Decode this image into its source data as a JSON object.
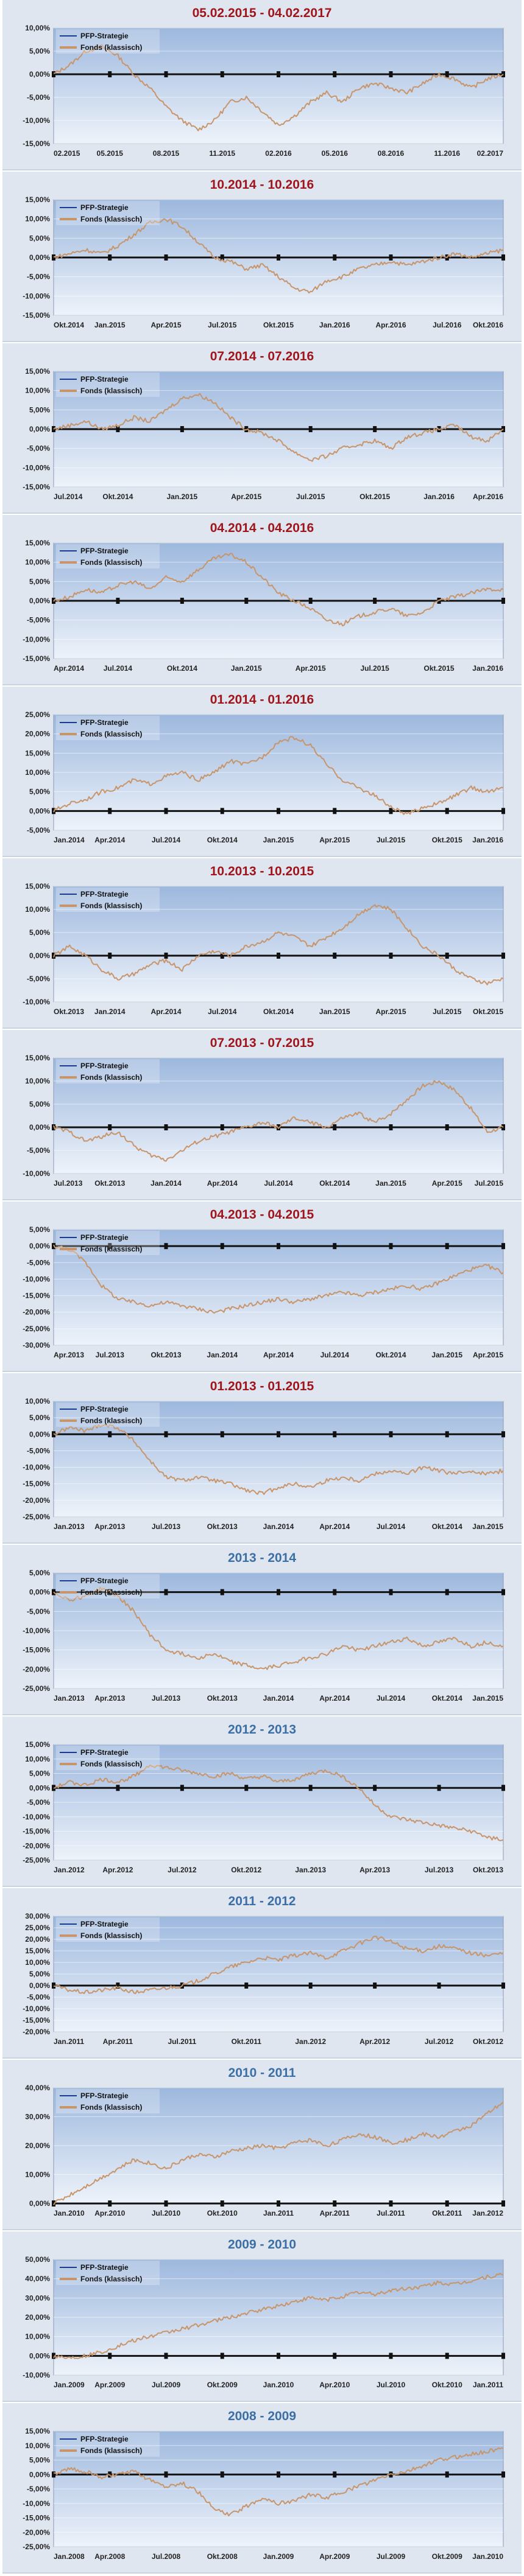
{
  "legend": {
    "strategy": "PFP-Strategie",
    "fund": "Fonds (klassisch)"
  },
  "colors": {
    "title_dark_red": "#a0141c",
    "title_blue": "#3b6fa6",
    "fund_line": "#c8956a",
    "strategy_line": "#111111",
    "plot_bg_top": "#9db8de",
    "plot_bg_bottom": "#eef3fa"
  },
  "chart_data": [
    {
      "type": "line",
      "title": "05.02.2015 - 04.02.2017",
      "title_color": "#a0141c",
      "ylim": [
        -15,
        10
      ],
      "yticks": [
        "-15,00%",
        "-10,00%",
        "-5,00%",
        "0,00%",
        "5,00%",
        "10,00%"
      ],
      "xticks": [
        "02.2015",
        "05.2015",
        "08.2015",
        "11.2015",
        "02.2016",
        "05.2016",
        "08.2016",
        "11.2016",
        "02.2017"
      ],
      "series": [
        {
          "name": "PFP-Strategie",
          "values": [
            0,
            0
          ]
        },
        {
          "name": "Fonds (klassisch)",
          "values": [
            0,
            2,
            5,
            6,
            4,
            0,
            -3,
            -7,
            -10,
            -12,
            -10,
            -6,
            -5,
            -8,
            -11,
            -9,
            -6,
            -4,
            -6,
            -3,
            -2,
            -3,
            -4,
            -2,
            0,
            -1,
            -3,
            -1,
            0
          ]
        }
      ]
    },
    {
      "type": "line",
      "title": "10.2014 - 10.2016",
      "title_color": "#a0141c",
      "ylim": [
        -15,
        15
      ],
      "yticks": [
        "-15,00%",
        "-10,00%",
        "-5,00%",
        "0,00%",
        "5,00%",
        "10,00%",
        "15,00%"
      ],
      "xticks": [
        "Okt.2014",
        "Jan.2015",
        "Apr.2015",
        "Jul.2015",
        "Okt.2015",
        "Jan.2016",
        "Apr.2016",
        "Jul.2016",
        "Okt.2016"
      ],
      "series": [
        {
          "name": "PFP-Strategie",
          "values": [
            0,
            0
          ]
        },
        {
          "name": "Fonds (klassisch)",
          "values": [
            0,
            1,
            2,
            1,
            3,
            6,
            9,
            10,
            8,
            4,
            0,
            -1,
            -3,
            -2,
            -5,
            -8,
            -9,
            -6,
            -5,
            -3,
            -2,
            -1,
            -2,
            -1,
            0,
            1,
            0,
            1,
            2
          ]
        }
      ]
    },
    {
      "type": "line",
      "title": "07.2014 - 07.2016",
      "title_color": "#a0141c",
      "ylim": [
        -15,
        15
      ],
      "yticks": [
        "-15,00%",
        "-10,00%",
        "-5,00%",
        "0,00%",
        "5,00%",
        "10,00%",
        "15,00%"
      ],
      "xticks": [
        "Jul.2014",
        "Okt.2014",
        "Jan.2015",
        "Apr.2015",
        "Jul.2015",
        "Okt.2015",
        "Jan.2016",
        "Apr.2016"
      ],
      "series": [
        {
          "name": "PFP-Strategie",
          "values": [
            0,
            0
          ]
        },
        {
          "name": "Fonds (klassisch)",
          "values": [
            0,
            1,
            2,
            0,
            1,
            3,
            2,
            5,
            8,
            9,
            7,
            3,
            0,
            -1,
            -3,
            -6,
            -8,
            -7,
            -5,
            -4,
            -3,
            -5,
            -2,
            -1,
            0,
            1,
            -2,
            -3,
            0
          ]
        }
      ]
    },
    {
      "type": "line",
      "title": "04.2014 - 04.2016",
      "title_color": "#a0141c",
      "ylim": [
        -15,
        15
      ],
      "yticks": [
        "-15,00%",
        "-10,00%",
        "-5,00%",
        "0,00%",
        "5,00%",
        "10,00%",
        "15,00%"
      ],
      "xticks": [
        "Apr.2014",
        "Jul.2014",
        "Okt.2014",
        "Jan.2015",
        "Apr.2015",
        "Jul.2015",
        "Okt.2015",
        "Jan.2016"
      ],
      "series": [
        {
          "name": "PFP-Strategie",
          "values": [
            0,
            0
          ]
        },
        {
          "name": "Fonds (klassisch)",
          "values": [
            0,
            1,
            3,
            2,
            4,
            5,
            3,
            6,
            5,
            8,
            11,
            12,
            10,
            6,
            2,
            0,
            -2,
            -5,
            -6,
            -4,
            -3,
            -2,
            -4,
            -3,
            0,
            1,
            2,
            3,
            3
          ]
        }
      ]
    },
    {
      "type": "line",
      "title": "01.2014 - 01.2016",
      "title_color": "#a0141c",
      "ylim": [
        -5,
        25
      ],
      "yticks": [
        "-5,00%",
        "0,00%",
        "5,00%",
        "10,00%",
        "15,00%",
        "20,00%",
        "25,00%"
      ],
      "xticks": [
        "Jan.2014",
        "Apr.2014",
        "Jul.2014",
        "Okt.2014",
        "Jan.2015",
        "Apr.2015",
        "Jul.2015",
        "Okt.2015",
        "Jan.2016"
      ],
      "series": [
        {
          "name": "PFP-Strategie",
          "values": [
            0,
            0
          ]
        },
        {
          "name": "Fonds (klassisch)",
          "values": [
            0,
            2,
            3,
            5,
            6,
            8,
            7,
            9,
            10,
            8,
            10,
            13,
            12,
            14,
            18,
            19,
            17,
            12,
            8,
            6,
            4,
            1,
            -1,
            1,
            2,
            4,
            6,
            5,
            6
          ]
        }
      ]
    },
    {
      "type": "line",
      "title": "10.2013 - 10.2015",
      "title_color": "#a0141c",
      "ylim": [
        -10,
        15
      ],
      "yticks": [
        "-10,00%",
        "-5,00%",
        "0,00%",
        "5,00%",
        "10,00%",
        "15,00%"
      ],
      "xticks": [
        "Okt.2013",
        "Jan.2014",
        "Apr.2014",
        "Jul.2014",
        "Okt.2014",
        "Jan.2015",
        "Apr.2015",
        "Jul.2015",
        "Okt.2015"
      ],
      "series": [
        {
          "name": "PFP-Strategie",
          "values": [
            0,
            0
          ]
        },
        {
          "name": "Fonds (klassisch)",
          "values": [
            0,
            2,
            0,
            -3,
            -5,
            -4,
            -2,
            -1,
            -3,
            0,
            1,
            0,
            2,
            3,
            5,
            4,
            2,
            4,
            6,
            9,
            11,
            10,
            6,
            2,
            0,
            -3,
            -5,
            -6,
            -5
          ]
        }
      ]
    },
    {
      "type": "line",
      "title": "07.2013 - 07.2015",
      "title_color": "#a0141c",
      "ylim": [
        -10,
        15
      ],
      "yticks": [
        "-10,00%",
        "-5,00%",
        "0,00%",
        "5,00%",
        "10,00%",
        "15,00%"
      ],
      "xticks": [
        "Jul.2013",
        "Okt.2013",
        "Jan.2014",
        "Apr.2014",
        "Jul.2014",
        "Okt.2014",
        "Jan.2015",
        "Apr.2015",
        "Jul.2015"
      ],
      "series": [
        {
          "name": "PFP-Strategie",
          "values": [
            0,
            0
          ]
        },
        {
          "name": "Fonds (klassisch)",
          "values": [
            0,
            -1,
            -3,
            -2,
            -1,
            -4,
            -6,
            -7,
            -5,
            -3,
            -2,
            -1,
            0,
            1,
            0,
            2,
            1,
            0,
            2,
            3,
            1,
            3,
            6,
            9,
            10,
            8,
            4,
            -1,
            0
          ]
        }
      ]
    },
    {
      "type": "line",
      "title": "04.2013 - 04.2015",
      "title_color": "#a0141c",
      "ylim": [
        -30,
        5
      ],
      "yticks": [
        "-30,00%",
        "-25,00%",
        "-20,00%",
        "-15,00%",
        "-10,00%",
        "-5,00%",
        "0,00%",
        "5,00%"
      ],
      "xticks": [
        "Apr.2013",
        "Jul.2013",
        "Okt.2013",
        "Jan.2014",
        "Apr.2014",
        "Jul.2014",
        "Okt.2014",
        "Jan.2015",
        "Apr.2015"
      ],
      "series": [
        {
          "name": "PFP-Strategie",
          "values": [
            0,
            0
          ]
        },
        {
          "name": "Fonds (klassisch)",
          "values": [
            0,
            -1,
            -5,
            -12,
            -16,
            -17,
            -18,
            -17,
            -18,
            -19,
            -20,
            -19,
            -18,
            -17,
            -16,
            -17,
            -16,
            -15,
            -14,
            -15,
            -14,
            -13,
            -12,
            -13,
            -11,
            -9,
            -7,
            -6,
            -8
          ]
        }
      ]
    },
    {
      "type": "line",
      "title": "01.2013 - 01.2015",
      "title_color": "#a0141c",
      "ylim": [
        -25,
        10
      ],
      "yticks": [
        "-25,00%",
        "-20,00%",
        "-15,00%",
        "-10,00%",
        "-5,00%",
        "0,00%",
        "5,00%",
        "10,00%"
      ],
      "xticks": [
        "Jan.2013",
        "Apr.2013",
        "Jul.2013",
        "Okt.2013",
        "Jan.2014",
        "Apr.2014",
        "Jul.2014",
        "Okt.2014",
        "Jan.2015"
      ],
      "series": [
        {
          "name": "PFP-Strategie",
          "values": [
            0,
            0
          ]
        },
        {
          "name": "Fonds (klassisch)",
          "values": [
            0,
            2,
            1,
            3,
            2,
            -2,
            -8,
            -13,
            -14,
            -13,
            -14,
            -15,
            -17,
            -18,
            -16,
            -15,
            -16,
            -14,
            -13,
            -14,
            -12,
            -11,
            -12,
            -10,
            -11,
            -12,
            -11,
            -12,
            -11
          ]
        }
      ]
    },
    {
      "type": "line",
      "title": "2013 - 2014",
      "title_color": "#3b6fa6",
      "ylim": [
        -25,
        5
      ],
      "yticks": [
        "-25,00%",
        "-20,00%",
        "-15,00%",
        "-10,00%",
        "-5,00%",
        "0,00%",
        "5,00%"
      ],
      "xticks": [
        "Jan.2013",
        "Apr.2013",
        "Jul.2013",
        "Okt.2013",
        "Jan.2014",
        "Apr.2014",
        "Jul.2014",
        "Okt.2014",
        "Jan.2015"
      ],
      "series": [
        {
          "name": "PFP-Strategie",
          "values": [
            0,
            0
          ]
        },
        {
          "name": "Fonds (klassisch)",
          "values": [
            0,
            -2,
            -1,
            1,
            -1,
            -5,
            -11,
            -15,
            -16,
            -17,
            -16,
            -18,
            -19,
            -20,
            -19,
            -18,
            -17,
            -16,
            -14,
            -15,
            -14,
            -13,
            -12,
            -14,
            -13,
            -12,
            -14,
            -13,
            -14
          ]
        }
      ]
    },
    {
      "type": "line",
      "title": "2012 - 2013",
      "title_color": "#3b6fa6",
      "ylim": [
        -25,
        15
      ],
      "yticks": [
        "-25,00%",
        "-20,00%",
        "-15,00%",
        "-10,00%",
        "-5,00%",
        "0,00%",
        "5,00%",
        "10,00%",
        "15,00%"
      ],
      "xticks": [
        "Jan.2012",
        "Apr.2012",
        "Jul.2012",
        "Okt.2012",
        "Jan.2013",
        "Apr.2013",
        "Jul.2013",
        "Okt.2013"
      ],
      "series": [
        {
          "name": "PFP-Strategie",
          "values": [
            0,
            0
          ]
        },
        {
          "name": "Fonds (klassisch)",
          "values": [
            0,
            2,
            1,
            3,
            2,
            4,
            8,
            7,
            6,
            5,
            4,
            5,
            3,
            4,
            2,
            3,
            5,
            6,
            4,
            0,
            -6,
            -10,
            -11,
            -12,
            -13,
            -14,
            -15,
            -17,
            -18
          ]
        }
      ]
    },
    {
      "type": "line",
      "title": "2011 - 2012",
      "title_color": "#3b6fa6",
      "ylim": [
        -20,
        30
      ],
      "yticks": [
        "-20,00%",
        "-15,00%",
        "-10,00%",
        "-5,00%",
        "0,00%",
        "5,00%",
        "10,00%",
        "15,00%",
        "20,00%",
        "25,00%",
        "30,00%"
      ],
      "xticks": [
        "Jan.2011",
        "Apr.2011",
        "Jul.2011",
        "Okt.2011",
        "Jan.2012",
        "Apr.2012",
        "Jul.2012",
        "Okt.2012"
      ],
      "series": [
        {
          "name": "PFP-Strategie",
          "values": [
            0,
            0
          ]
        },
        {
          "name": "Fonds (klassisch)",
          "values": [
            0,
            -2,
            -3,
            -2,
            -1,
            -3,
            -2,
            -1,
            0,
            2,
            5,
            8,
            10,
            12,
            11,
            13,
            14,
            12,
            15,
            18,
            21,
            19,
            16,
            15,
            17,
            16,
            14,
            13,
            14
          ]
        }
      ]
    },
    {
      "type": "line",
      "title": "2010 - 2011",
      "title_color": "#3b6fa6",
      "ylim": [
        0,
        40
      ],
      "yticks": [
        "0,00%",
        "10,00%",
        "20,00%",
        "30,00%",
        "40,00%"
      ],
      "xticks": [
        "Jan.2010",
        "Apr.2010",
        "Jul.2010",
        "Okt.2010",
        "Jan.2011",
        "Apr.2011",
        "Jul.2011",
        "Okt.2011",
        "Jan.2012"
      ],
      "series": [
        {
          "name": "PFP-Strategie",
          "values": [
            0,
            0
          ]
        },
        {
          "name": "Fonds (klassisch)",
          "values": [
            0,
            3,
            6,
            9,
            12,
            15,
            14,
            12,
            15,
            17,
            16,
            18,
            19,
            20,
            19,
            21,
            22,
            20,
            22,
            24,
            23,
            21,
            22,
            24,
            23,
            25,
            27,
            31,
            35
          ]
        }
      ]
    },
    {
      "type": "line",
      "title": "2009 - 2010",
      "title_color": "#3b6fa6",
      "ylim": [
        -10,
        50
      ],
      "yticks": [
        "-10,00%",
        "0,00%",
        "10,00%",
        "20,00%",
        "30,00%",
        "40,00%",
        "50,00%"
      ],
      "xticks": [
        "Jan.2009",
        "Apr.2009",
        "Jul.2009",
        "Okt.2009",
        "Jan.2010",
        "Apr.2010",
        "Jul.2010",
        "Okt.2010",
        "Jan.2011"
      ],
      "series": [
        {
          "name": "PFP-Strategie",
          "values": [
            0,
            0
          ]
        },
        {
          "name": "Fonds (klassisch)",
          "values": [
            0,
            -1,
            0,
            2,
            5,
            8,
            10,
            12,
            14,
            16,
            18,
            20,
            22,
            24,
            26,
            28,
            30,
            29,
            31,
            33,
            32,
            34,
            35,
            36,
            38,
            37,
            39,
            41,
            42
          ]
        }
      ]
    },
    {
      "type": "line",
      "title": "2008 - 2009",
      "title_color": "#3b6fa6",
      "ylim": [
        -25,
        15
      ],
      "yticks": [
        "-25,00%",
        "-20,00%",
        "-15,00%",
        "-10,00%",
        "-5,00%",
        "0,00%",
        "5,00%",
        "10,00%",
        "15,00%"
      ],
      "xticks": [
        "Jan.2008",
        "Apr.2008",
        "Jul.2008",
        "Okt.2008",
        "Jan.2009",
        "Apr.2009",
        "Jul.2009",
        "Okt.2009",
        "Jan.2010"
      ],
      "series": [
        {
          "name": "PFP-Strategie",
          "values": [
            0,
            0
          ]
        },
        {
          "name": "Fonds (klassisch)",
          "values": [
            0,
            2,
            1,
            -1,
            0,
            1,
            -2,
            -4,
            -3,
            -6,
            -12,
            -14,
            -11,
            -8,
            -10,
            -9,
            -7,
            -8,
            -6,
            -4,
            -2,
            0,
            1,
            3,
            5,
            6,
            7,
            8,
            9
          ]
        }
      ]
    }
  ]
}
